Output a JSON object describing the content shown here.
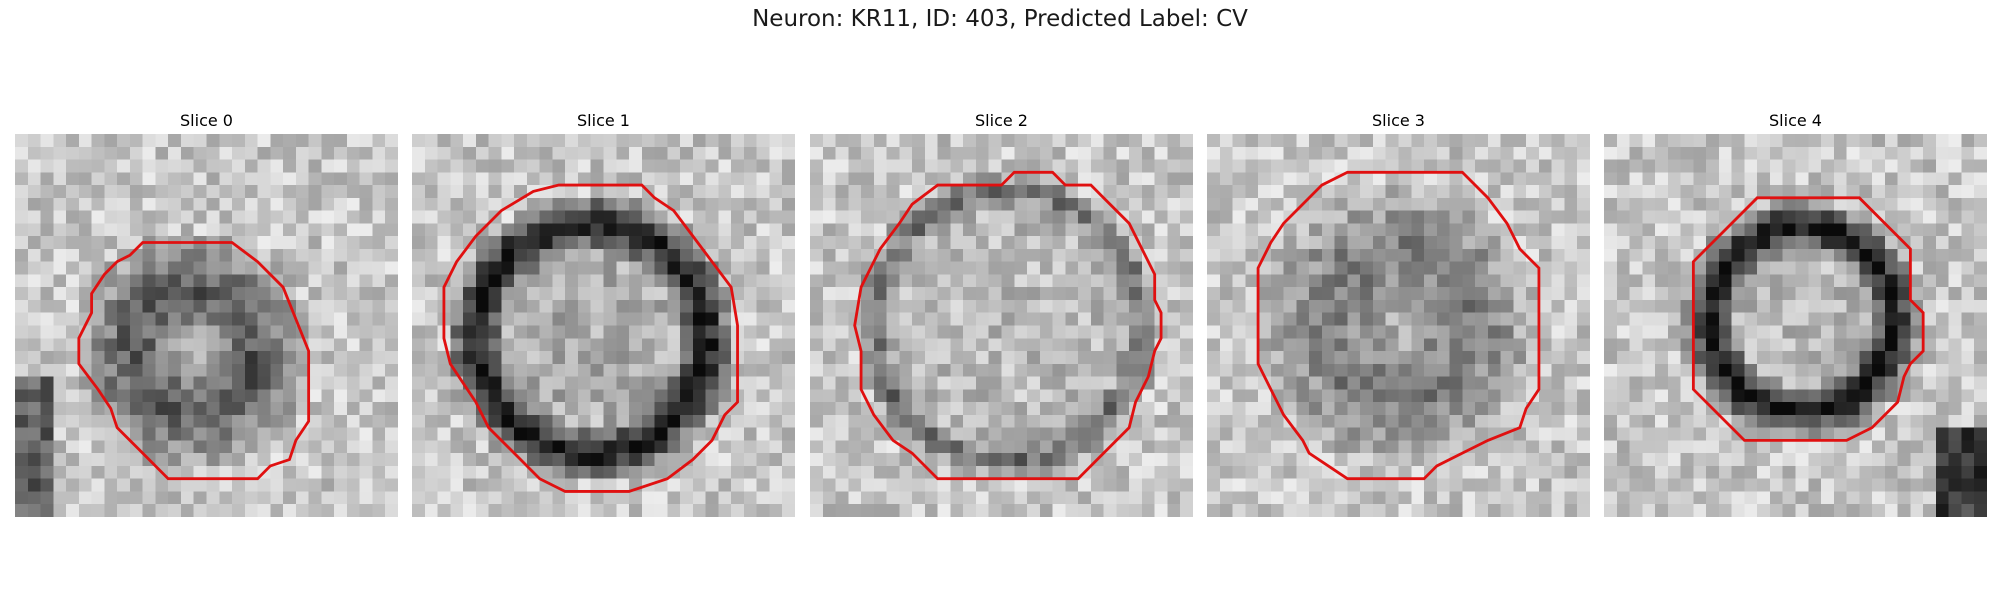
{
  "figure": {
    "title": "Neuron: KR11, ID: 403, Predicted Label: CV",
    "outline_color": "#e01010"
  },
  "slices": [
    {
      "label": "Slice 0"
    },
    {
      "label": "Slice 1"
    },
    {
      "label": "Slice 2"
    },
    {
      "label": "Slice 3"
    },
    {
      "label": "Slice 4"
    }
  ]
}
